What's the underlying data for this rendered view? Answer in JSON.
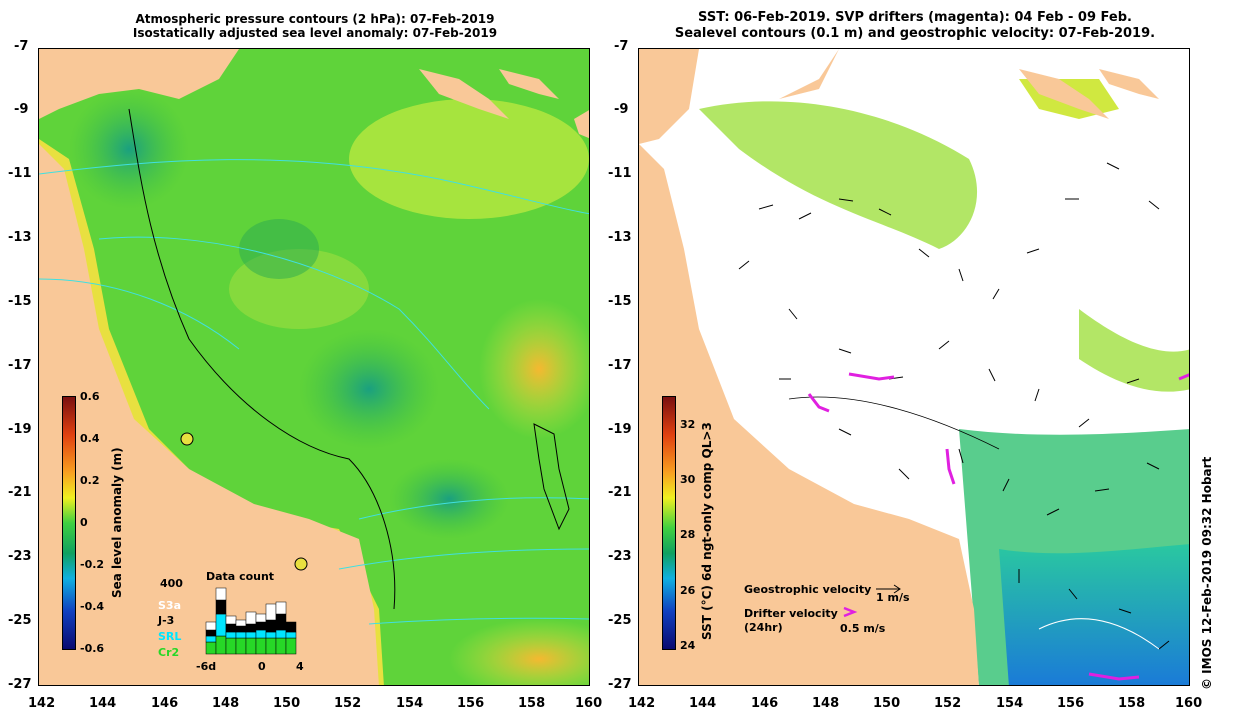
{
  "left_panel": {
    "title_line1": "Atmospheric pressure contours (2 hPa): 07-Feb-2019",
    "title_line2": "Isostatically adjusted sea level anomaly: 07-Feb-2019",
    "colorbar_label": "Sea level anomaly (m)",
    "colorbar_ticks": [
      "0.6",
      "0.4",
      "0.2",
      "0",
      "-0.2",
      "-0.4",
      "-0.6"
    ],
    "colors": {
      "land": "#f9c898",
      "sea_mid": "#5fd33a",
      "sea_low": "#1aa35a",
      "sea_high": "#f0e030"
    },
    "data_count": {
      "title": "Data count",
      "max_label": "400",
      "x_labels": [
        "-6d",
        "0",
        "4"
      ],
      "legend": [
        {
          "name": "S3a",
          "color": "#ffffff"
        },
        {
          "name": "J-3",
          "color": "#000000"
        },
        {
          "name": "SRL",
          "color": "#00e5ff"
        },
        {
          "name": "Cr2",
          "color": "#27d727"
        }
      ]
    }
  },
  "right_panel": {
    "title_line1": "SST: 06-Feb-2019. SVP drifters (magenta): 04 Feb - 09 Feb.",
    "title_line2": "Sealevel contours (0.1 m) and geostrophic velocity: 07-Feb-2019.",
    "colorbar_label": "SST (°C) 6d ngt-only comp QL>3",
    "colorbar_ticks": [
      "32",
      "30",
      "28",
      "26",
      "24"
    ],
    "legend": {
      "geostrophic_label": "Geostrophic velocity",
      "geostrophic_scale": "1 m/s",
      "drifter_label_1": "Drifter velocity",
      "drifter_label_2": "(24hr)",
      "drifter_scale": "0.5 m/s"
    },
    "credit": "© IMOS 12-Feb-2019 09:32 Hobart",
    "colors": {
      "land": "#f9c898",
      "cloud": "#ffffff",
      "drifter": "#e020e0"
    }
  },
  "axes": {
    "lat_ticks": [
      "-7",
      "-9",
      "-11",
      "-13",
      "-15",
      "-17",
      "-19",
      "-21",
      "-23",
      "-25",
      "-27"
    ],
    "lon_ticks": [
      "142",
      "144",
      "146",
      "148",
      "150",
      "152",
      "154",
      "156",
      "158",
      "160"
    ]
  }
}
